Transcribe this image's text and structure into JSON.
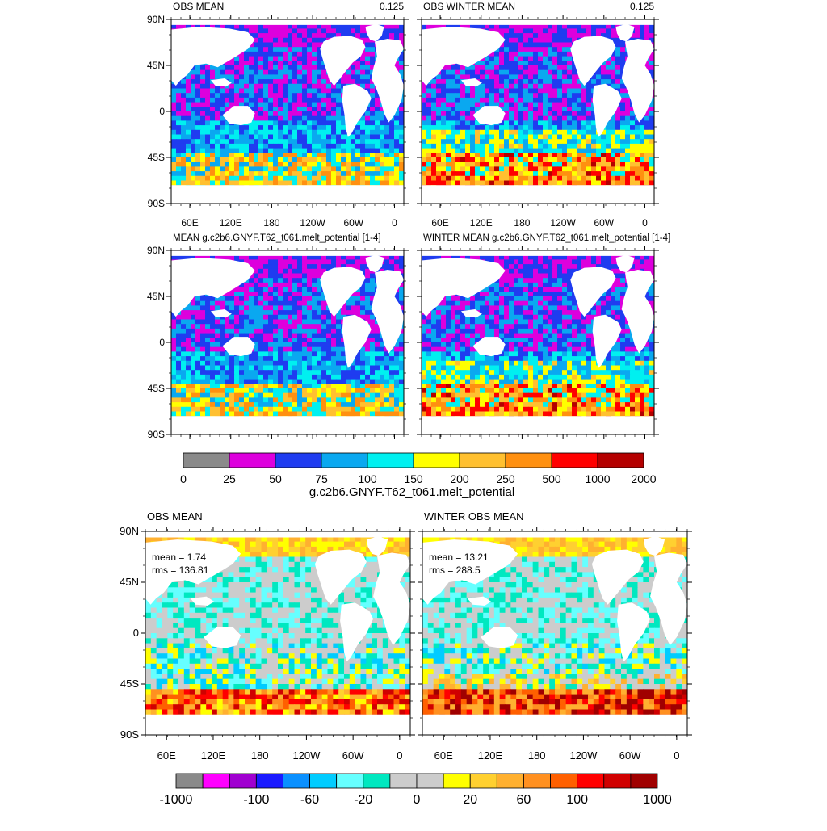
{
  "figure": {
    "panels": [
      {
        "title_left": "OBS MEAN",
        "title_right": "0.125",
        "stat_mean": "",
        "stat_rms": "",
        "palette": "melt"
      },
      {
        "title_left": "OBS WINTER MEAN",
        "title_right": "0.125",
        "stat_mean": "",
        "stat_rms": "",
        "palette": "melt"
      },
      {
        "title_left": "MEAN g.c2b6.GNYF.T62_t061.melt_potential [1-4]",
        "title_right": "",
        "stat_mean": "",
        "stat_rms": "",
        "palette": "melt"
      },
      {
        "title_left": "WINTER MEAN g.c2b6.GNYF.T62_t061.melt_potential [1-4]",
        "title_right": "",
        "stat_mean": "",
        "stat_rms": "",
        "palette": "melt"
      },
      {
        "title_left": "OBS MEAN",
        "title_right": "",
        "stat_mean": "mean = 1.74",
        "stat_rms": "rms = 136.81",
        "palette": "diff"
      },
      {
        "title_left": "WINTER OBS MEAN",
        "title_right": "",
        "stat_mean": "mean = 13.21",
        "stat_rms": "rms = 288.5",
        "palette": "diff"
      }
    ],
    "lat_labels": [
      "90N",
      "45N",
      "0",
      "45S",
      "90S"
    ],
    "lon_labels": [
      "60E",
      "120E",
      "180",
      "120W",
      "60W",
      "0"
    ],
    "colorbar_top": {
      "labels": [
        "0",
        "25",
        "50",
        "75",
        "100",
        "150",
        "200",
        "250",
        "500",
        "1000",
        "2000"
      ],
      "colors": [
        "#8a8a8a",
        "#dd00dd",
        "#1f3cf0",
        "#0aa8f0",
        "#00f0f0",
        "#ffff00",
        "#ffc030",
        "#ff9010",
        "#ff0000",
        "#b40000"
      ],
      "title": "g.c2b6.GNYF.T62_t061.melt_potential"
    },
    "colorbar_bottom": {
      "labels": [
        "-1000",
        "-100",
        "-60",
        "-20",
        "0",
        "20",
        "60",
        "100",
        "1000"
      ],
      "colors": [
        "#8a8a8a",
        "#ff00ff",
        "#a000d0",
        "#1a1aff",
        "#0a90ff",
        "#00ccff",
        "#66ffff",
        "#00e8c0",
        "#cccccc",
        "#cccccc",
        "#ffff00",
        "#ffd030",
        "#ffb030",
        "#ff9020",
        "#ff6000",
        "#ff0000",
        "#d00000",
        "#a00000"
      ]
    },
    "colors": {
      "land": "#ffffff",
      "frame": "#000000"
    }
  }
}
